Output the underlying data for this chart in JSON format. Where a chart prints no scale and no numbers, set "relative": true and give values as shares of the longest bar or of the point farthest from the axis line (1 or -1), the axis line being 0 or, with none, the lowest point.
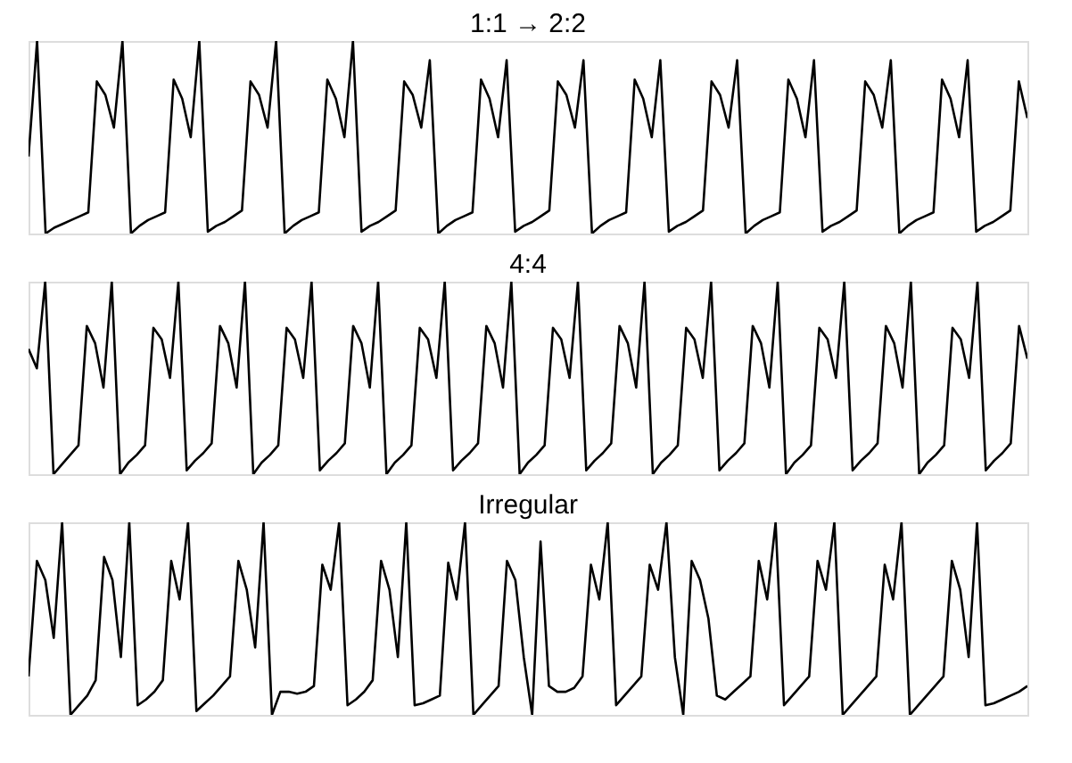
{
  "chart_data": [
    {
      "type": "line",
      "title": "1:1 → 2:2",
      "relative": true,
      "tick_labels": false,
      "grid": false,
      "legend": false,
      "marker": "none",
      "line_style": "solid",
      "categories": [
        null,
        null,
        null,
        null,
        null,
        null,
        null,
        null,
        null,
        null,
        null,
        null,
        null,
        null,
        null,
        null,
        null,
        null,
        null,
        null,
        null,
        null,
        null,
        null,
        null,
        null,
        null,
        null,
        null,
        null,
        null,
        null,
        null,
        null,
        null,
        null,
        null,
        null,
        null,
        null,
        null,
        null,
        null,
        null,
        null,
        null,
        null,
        null,
        null,
        null,
        null,
        null,
        null,
        null,
        null,
        null,
        null,
        null,
        null,
        null,
        null,
        null,
        null,
        null,
        null,
        null,
        null,
        null,
        null,
        null,
        null,
        null,
        null,
        null,
        null,
        null,
        null,
        null,
        null,
        null,
        null,
        null,
        null,
        null,
        null,
        null,
        null,
        null,
        null,
        null,
        null,
        null,
        null,
        null,
        null,
        null,
        null,
        null,
        null,
        null,
        null,
        null,
        null,
        null,
        null,
        null,
        null,
        null,
        null,
        null,
        null,
        null,
        null,
        null,
        null,
        null,
        null,
        null
      ],
      "series": [
        {
          "color": "#000000",
          "values": [
            0.4,
            1.0,
            0.0,
            0.03,
            0.05,
            0.07,
            0.09,
            0.11,
            0.79,
            0.72,
            0.55,
            1.0,
            0.0,
            0.04,
            0.07,
            0.09,
            0.11,
            0.8,
            0.7,
            0.5,
            1.0,
            0.01,
            0.04,
            0.06,
            0.09,
            0.12,
            0.79,
            0.72,
            0.55,
            1.0,
            0.0,
            0.04,
            0.07,
            0.09,
            0.11,
            0.8,
            0.7,
            0.5,
            1.0,
            0.01,
            0.04,
            0.06,
            0.09,
            0.12,
            0.79,
            0.72,
            0.55,
            0.9,
            0.0,
            0.04,
            0.07,
            0.09,
            0.11,
            0.8,
            0.7,
            0.5,
            0.9,
            0.01,
            0.04,
            0.06,
            0.09,
            0.12,
            0.79,
            0.72,
            0.55,
            0.9,
            0.0,
            0.04,
            0.07,
            0.09,
            0.11,
            0.8,
            0.7,
            0.5,
            0.9,
            0.01,
            0.04,
            0.06,
            0.09,
            0.12,
            0.79,
            0.72,
            0.55,
            0.9,
            0.0,
            0.04,
            0.07,
            0.09,
            0.11,
            0.8,
            0.7,
            0.5,
            0.9,
            0.01,
            0.04,
            0.06,
            0.09,
            0.12,
            0.79,
            0.72,
            0.55,
            0.9,
            0.0,
            0.04,
            0.07,
            0.09,
            0.11,
            0.8,
            0.7,
            0.5,
            0.9,
            0.01,
            0.04,
            0.06,
            0.09,
            0.12,
            0.79,
            0.6
          ]
        }
      ]
    },
    {
      "type": "line",
      "title": "4:4",
      "relative": true,
      "tick_labels": false,
      "grid": false,
      "legend": false,
      "marker": "none",
      "line_style": "solid",
      "categories": [
        null,
        null,
        null,
        null,
        null,
        null,
        null,
        null,
        null,
        null,
        null,
        null,
        null,
        null,
        null,
        null,
        null,
        null,
        null,
        null,
        null,
        null,
        null,
        null,
        null,
        null,
        null,
        null,
        null,
        null,
        null,
        null,
        null,
        null,
        null,
        null,
        null,
        null,
        null,
        null,
        null,
        null,
        null,
        null,
        null,
        null,
        null,
        null,
        null,
        null,
        null,
        null,
        null,
        null,
        null,
        null,
        null,
        null,
        null,
        null,
        null,
        null,
        null,
        null,
        null,
        null,
        null,
        null,
        null,
        null,
        null,
        null,
        null,
        null,
        null,
        null,
        null,
        null,
        null,
        null,
        null,
        null,
        null,
        null,
        null,
        null,
        null,
        null,
        null,
        null,
        null,
        null,
        null,
        null,
        null,
        null,
        null,
        null,
        null,
        null,
        null,
        null,
        null,
        null,
        null,
        null,
        null,
        null,
        null,
        null,
        null,
        null,
        null,
        null,
        null,
        null,
        null,
        null,
        null,
        null,
        null
      ],
      "series": [
        {
          "color": "#000000",
          "values": [
            0.65,
            0.55,
            1.0,
            0.0,
            0.05,
            0.1,
            0.15,
            0.77,
            0.68,
            0.45,
            1.0,
            0.0,
            0.06,
            0.1,
            0.15,
            0.76,
            0.7,
            0.5,
            1.0,
            0.02,
            0.07,
            0.11,
            0.16,
            0.77,
            0.68,
            0.45,
            1.0,
            0.0,
            0.06,
            0.1,
            0.15,
            0.76,
            0.7,
            0.5,
            1.0,
            0.02,
            0.07,
            0.11,
            0.16,
            0.77,
            0.68,
            0.45,
            1.0,
            0.0,
            0.06,
            0.1,
            0.15,
            0.76,
            0.7,
            0.5,
            1.0,
            0.02,
            0.07,
            0.11,
            0.16,
            0.77,
            0.68,
            0.45,
            1.0,
            0.0,
            0.06,
            0.1,
            0.15,
            0.76,
            0.7,
            0.5,
            1.0,
            0.02,
            0.07,
            0.11,
            0.16,
            0.77,
            0.68,
            0.45,
            1.0,
            0.0,
            0.06,
            0.1,
            0.15,
            0.76,
            0.7,
            0.5,
            1.0,
            0.02,
            0.07,
            0.11,
            0.16,
            0.77,
            0.68,
            0.45,
            1.0,
            0.0,
            0.06,
            0.1,
            0.15,
            0.76,
            0.7,
            0.5,
            1.0,
            0.02,
            0.07,
            0.11,
            0.16,
            0.77,
            0.68,
            0.45,
            1.0,
            0.0,
            0.06,
            0.1,
            0.15,
            0.76,
            0.7,
            0.5,
            1.0,
            0.02,
            0.07,
            0.11,
            0.16,
            0.77,
            0.6
          ]
        }
      ]
    },
    {
      "type": "line",
      "title": "Irregular",
      "relative": true,
      "tick_labels": false,
      "grid": false,
      "legend": false,
      "marker": "none",
      "line_style": "solid",
      "categories": [
        null,
        null,
        null,
        null,
        null,
        null,
        null,
        null,
        null,
        null,
        null,
        null,
        null,
        null,
        null,
        null,
        null,
        null,
        null,
        null,
        null,
        null,
        null,
        null,
        null,
        null,
        null,
        null,
        null,
        null,
        null,
        null,
        null,
        null,
        null,
        null,
        null,
        null,
        null,
        null,
        null,
        null,
        null,
        null,
        null,
        null,
        null,
        null,
        null,
        null,
        null,
        null,
        null,
        null,
        null,
        null,
        null,
        null,
        null,
        null,
        null,
        null,
        null,
        null,
        null,
        null,
        null,
        null,
        null,
        null,
        null,
        null,
        null,
        null,
        null,
        null,
        null,
        null,
        null,
        null,
        null,
        null,
        null,
        null,
        null,
        null,
        null,
        null,
        null,
        null,
        null,
        null,
        null,
        null,
        null,
        null,
        null,
        null,
        null,
        null,
        null,
        null,
        null,
        null,
        null,
        null,
        null,
        null,
        null,
        null,
        null,
        null,
        null,
        null,
        null,
        null,
        null,
        null,
        null,
        null
      ],
      "series": [
        {
          "color": "#000000",
          "values": [
            0.2,
            0.8,
            0.7,
            0.4,
            1.0,
            0.0,
            0.05,
            0.1,
            0.18,
            0.82,
            0.7,
            0.3,
            1.0,
            0.05,
            0.08,
            0.12,
            0.18,
            0.8,
            0.6,
            1.0,
            0.02,
            0.06,
            0.1,
            0.15,
            0.2,
            0.8,
            0.65,
            0.35,
            1.0,
            0.0,
            0.12,
            0.12,
            0.11,
            0.12,
            0.15,
            0.78,
            0.65,
            1.0,
            0.05,
            0.08,
            0.12,
            0.18,
            0.8,
            0.65,
            0.3,
            1.0,
            0.05,
            0.06,
            0.08,
            0.1,
            0.79,
            0.6,
            1.0,
            0.0,
            0.05,
            0.1,
            0.15,
            0.8,
            0.7,
            0.3,
            0.0,
            0.9,
            0.15,
            0.12,
            0.12,
            0.14,
            0.2,
            0.78,
            0.6,
            1.0,
            0.05,
            0.1,
            0.15,
            0.2,
            0.78,
            0.65,
            1.0,
            0.3,
            0.0,
            0.8,
            0.7,
            0.5,
            0.1,
            0.08,
            0.12,
            0.16,
            0.2,
            0.8,
            0.6,
            1.0,
            0.05,
            0.1,
            0.15,
            0.2,
            0.8,
            0.65,
            1.0,
            0.0,
            0.05,
            0.1,
            0.15,
            0.2,
            0.78,
            0.6,
            1.0,
            0.0,
            0.05,
            0.1,
            0.15,
            0.2,
            0.8,
            0.65,
            0.3,
            1.0,
            0.05,
            0.06,
            0.08,
            0.1,
            0.12,
            0.15
          ]
        }
      ]
    }
  ]
}
